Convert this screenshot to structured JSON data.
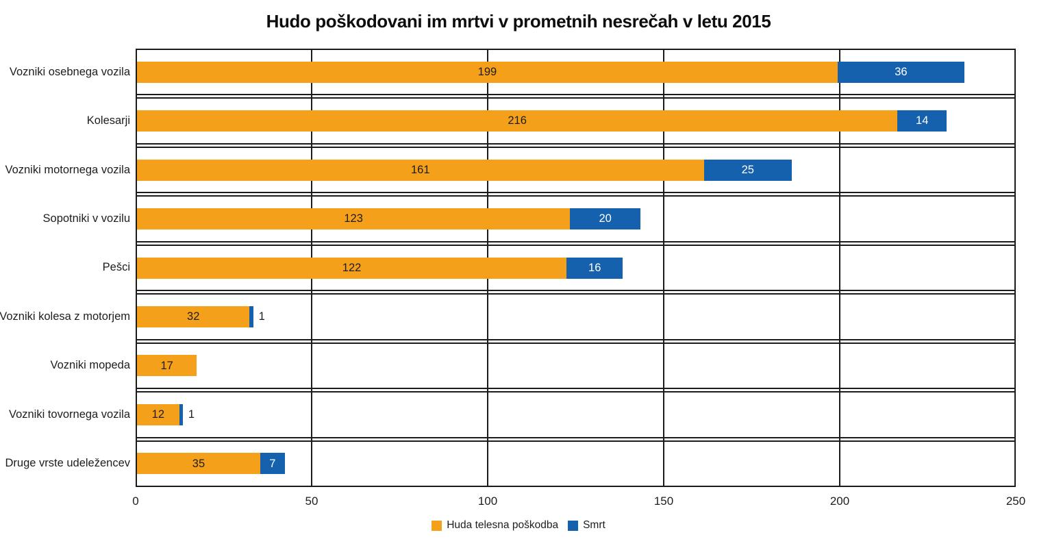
{
  "title": "Hudo poškodovani im mrtvi v prometnih nesrečah v letu 2015",
  "colors": {
    "huda": "#F5A01B",
    "smrt": "#1561AE",
    "grid": "#1b1b19",
    "text": "#1d1d1b"
  },
  "chart_data": {
    "type": "bar",
    "orientation": "horizontal",
    "stacked": true,
    "title": "Hudo poškodovani im mrtvi v prometnih nesrečah v letu 2015",
    "categories": [
      "Vozniki osebnega vozila",
      "Kolesarji",
      "Vozniki motornega vozila",
      "Sopotniki v vozilu",
      "Pešci",
      "Vozniki kolesa z motorjem",
      "Vozniki mopeda",
      "Vozniki tovornega vozila",
      "Druge vrste udeležencev"
    ],
    "series": [
      {
        "name": "Huda telesna poškodba",
        "color": "#F5A01B",
        "values": [
          199,
          216,
          161,
          123,
          122,
          32,
          17,
          12,
          35
        ]
      },
      {
        "name": "Smrt",
        "color": "#1561AE",
        "values": [
          36,
          14,
          25,
          20,
          16,
          1,
          0,
          1,
          7
        ]
      }
    ],
    "xlim": [
      0,
      250
    ],
    "xticks": [
      0,
      50,
      100,
      150,
      200,
      250
    ],
    "xlabel": "",
    "ylabel": "",
    "grid": "full-table-grid",
    "legend_position": "bottom"
  },
  "legend": {
    "items": [
      {
        "label": "Huda telesna poškodba",
        "color": "#F5A01B"
      },
      {
        "label": "Smrt",
        "color": "#1561AE"
      }
    ]
  }
}
